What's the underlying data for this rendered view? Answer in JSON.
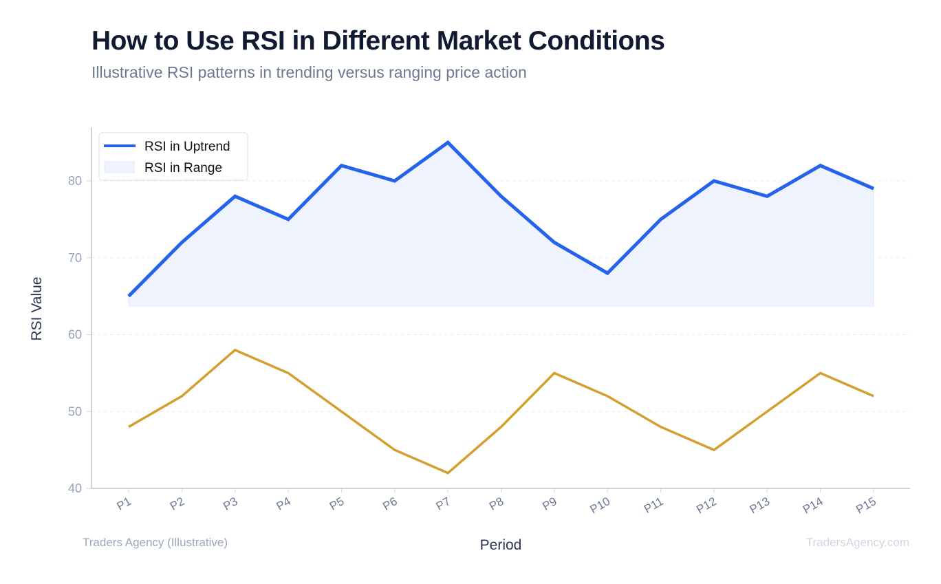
{
  "title": "How to Use RSI in Different Market Conditions",
  "subtitle": "Illustrative RSI patterns in trending versus ranging price action",
  "footer": {
    "left": "Traders Agency (Illustrative)",
    "right": "TradersAgency.com"
  },
  "chart_data": {
    "type": "line",
    "title": "How to Use RSI in Different Market Conditions",
    "subtitle": "Illustrative RSI patterns in trending versus ranging price action",
    "xlabel": "Period",
    "ylabel": "RSI Value",
    "categories": [
      "P1",
      "P2",
      "P3",
      "P4",
      "P5",
      "P6",
      "P7",
      "P8",
      "P9",
      "P10",
      "P11",
      "P12",
      "P13",
      "P14",
      "P15"
    ],
    "ylim": [
      40,
      87
    ],
    "yticks": [
      40,
      50,
      60,
      70,
      80
    ],
    "grid": true,
    "legend_position": "top-left",
    "legend": [
      "RSI in Uptrend",
      "RSI in Range"
    ],
    "series": [
      {
        "name": "RSI in Uptrend",
        "color": "#2563eb",
        "fill": "#eef3fd",
        "values": [
          65,
          72,
          78,
          75,
          82,
          80,
          85,
          78,
          72,
          68,
          75,
          80,
          78,
          82,
          79
        ]
      },
      {
        "color": "#d49f2e",
        "values": [
          48,
          52,
          58,
          55,
          50,
          45,
          42,
          48,
          55,
          52,
          48,
          45,
          50,
          55,
          52
        ]
      }
    ]
  }
}
